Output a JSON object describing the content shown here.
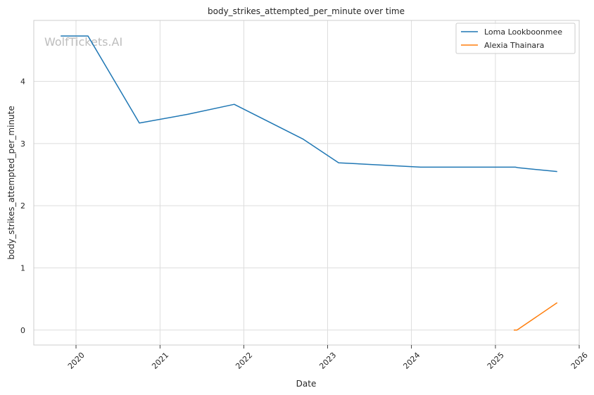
{
  "watermark": "WolfTickets.AI",
  "chart_data": {
    "type": "line",
    "title": "body_strikes_attempted_per_minute over time",
    "xlabel": "Date",
    "ylabel": "body_strikes_attempted_per_minute",
    "x_ticks": [
      "2020",
      "2021",
      "2022",
      "2023",
      "2024",
      "2025",
      "2026"
    ],
    "y_ticks": [
      0,
      1,
      2,
      3,
      4
    ],
    "xlim": [
      "2019-07-01",
      "2026-01-01"
    ],
    "ylim": [
      -0.24,
      4.98
    ],
    "grid": true,
    "legend_position": "top-right",
    "series": [
      {
        "name": "Loma Lookboonmee",
        "color": "#1f77b4",
        "points": [
          {
            "x": "2019-10-26",
            "y": 4.73
          },
          {
            "x": "2020-02-22",
            "y": 4.73
          },
          {
            "x": "2020-10-03",
            "y": 3.33
          },
          {
            "x": "2021-05-01",
            "y": 3.47
          },
          {
            "x": "2021-11-20",
            "y": 3.63
          },
          {
            "x": "2022-09-17",
            "y": 3.07
          },
          {
            "x": "2023-02-18",
            "y": 2.69
          },
          {
            "x": "2024-02-10",
            "y": 2.62
          },
          {
            "x": "2025-03-29",
            "y": 2.62
          },
          {
            "x": "2025-04-12",
            "y": 2.61
          },
          {
            "x": "2025-09-27",
            "y": 2.55
          }
        ]
      },
      {
        "name": "Alexia Thainara",
        "color": "#ff7f0e",
        "points": [
          {
            "x": "2025-03-22",
            "y": 0.0
          },
          {
            "x": "2025-04-05",
            "y": 0.0
          },
          {
            "x": "2025-09-27",
            "y": 0.44
          }
        ]
      }
    ]
  }
}
